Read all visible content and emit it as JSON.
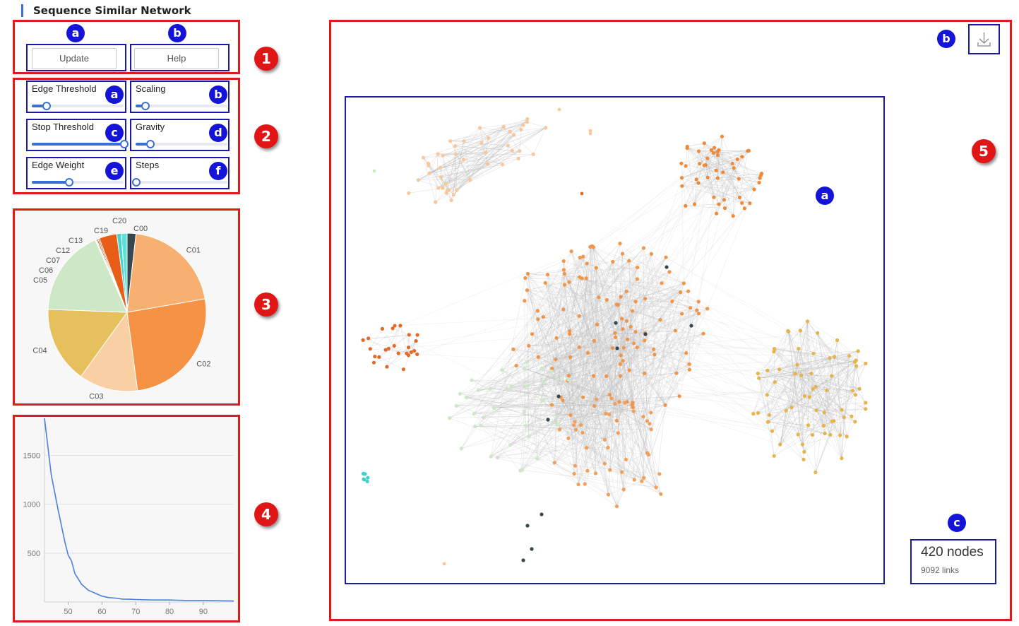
{
  "page": {
    "title": "Sequence Similar Network"
  },
  "panel1": {
    "marker": "1",
    "badge_a": "a",
    "badge_b": "b",
    "update_label": "Update",
    "help_label": "Help"
  },
  "panel2": {
    "marker": "2",
    "sliders": [
      {
        "badge": "a",
        "label": "Edge Threshold",
        "value_fraction": 0.15
      },
      {
        "badge": "b",
        "label": "Scaling",
        "value_fraction": 0.1
      },
      {
        "badge": "c",
        "label": "Stop Threshold",
        "value_fraction": 1.0
      },
      {
        "badge": "d",
        "label": "Gravity",
        "value_fraction": 0.15
      },
      {
        "badge": "e",
        "label": "Edge Weight",
        "value_fraction": 0.4
      },
      {
        "badge": "f",
        "label": "Steps",
        "value_fraction": 0.0
      }
    ]
  },
  "panel3": {
    "marker": "3",
    "chart_data": {
      "type": "pie",
      "labels": [
        "C00",
        "C01",
        "C02",
        "C03",
        "C04",
        "C05",
        "C06",
        "C07",
        "C12",
        "C13",
        "C19",
        "C20"
      ],
      "values": [
        6,
        68,
        85,
        40,
        52,
        59,
        1,
        1,
        1,
        12,
        3,
        4
      ],
      "colors": [
        "#37474f",
        "#f8b071",
        "#f69244",
        "#f9d0a4",
        "#e6c05c",
        "#cde8c6",
        "#e2f1dd",
        "#c0572a",
        "#d96c2c",
        "#e85e18",
        "#41d4cf",
        "#5fe2d6"
      ]
    }
  },
  "panel4": {
    "marker": "4",
    "chart_data": {
      "type": "line",
      "x": [
        43,
        45,
        47,
        49,
        50,
        51,
        52,
        54,
        56,
        58,
        60,
        62,
        64,
        66,
        68,
        70,
        75,
        80,
        85,
        90,
        95,
        99
      ],
      "y": [
        1880,
        1300,
        950,
        620,
        480,
        420,
        290,
        180,
        120,
        90,
        60,
        45,
        40,
        30,
        28,
        25,
        20,
        20,
        15,
        15,
        12,
        10
      ],
      "xlim": [
        43,
        99
      ],
      "ylim": [
        0,
        1880
      ],
      "xticks": [
        "50",
        "60",
        "70",
        "80",
        "90"
      ],
      "yticks": [
        "500",
        "1000",
        "1500"
      ],
      "line_color": "#4a80e0"
    }
  },
  "panel5": {
    "marker": "5",
    "badge_a": "a",
    "badge_b": "b",
    "badge_c": "c",
    "download_icon": "download-icon",
    "nodes_label": "420 nodes",
    "links_label": "9092 links"
  }
}
